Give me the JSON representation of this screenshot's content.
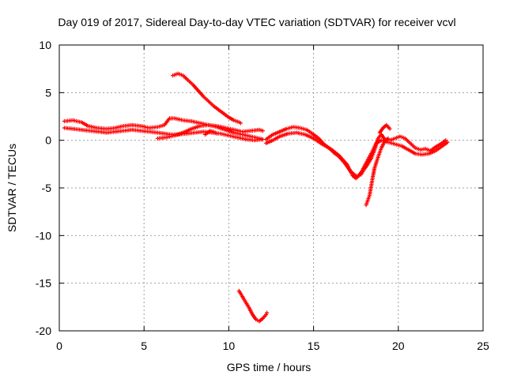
{
  "chart_data": {
    "type": "scatter",
    "title": "Day 019 of 2017, Sidereal Day-to-day VTEC variation (SDTVAR) for receiver vcvl",
    "xlabel": "GPS time / hours",
    "ylabel": "SDTVAR / TECUs",
    "xlim": [
      0,
      25
    ],
    "ylim": [
      -20,
      10
    ],
    "xticks": [
      0,
      5,
      10,
      15,
      20,
      25
    ],
    "yticks": [
      -20,
      -15,
      -10,
      -5,
      0,
      5,
      10
    ],
    "grid": true,
    "marker": "+",
    "series_color": "#ff0000",
    "segments": [
      {
        "name": "early-upper",
        "points": [
          [
            0.3,
            2.0
          ],
          [
            0.8,
            2.1
          ],
          [
            1.3,
            1.9
          ],
          [
            1.7,
            1.5
          ],
          [
            2.2,
            1.3
          ],
          [
            2.8,
            1.2
          ],
          [
            3.3,
            1.3
          ],
          [
            3.8,
            1.5
          ],
          [
            4.3,
            1.6
          ],
          [
            4.8,
            1.5
          ],
          [
            5.3,
            1.3
          ],
          [
            5.8,
            1.4
          ],
          [
            6.2,
            1.6
          ],
          [
            6.5,
            2.3
          ],
          [
            6.8,
            2.3
          ],
          [
            7.3,
            2.1
          ],
          [
            7.8,
            2.0
          ],
          [
            8.3,
            1.8
          ],
          [
            8.8,
            1.6
          ],
          [
            9.3,
            1.5
          ],
          [
            9.8,
            1.3
          ],
          [
            10.3,
            1.1
          ],
          [
            10.8,
            0.9
          ],
          [
            11.3,
            1.0
          ],
          [
            11.8,
            1.1
          ],
          [
            12.0,
            1.0
          ]
        ]
      },
      {
        "name": "early-lower",
        "points": [
          [
            0.3,
            1.3
          ],
          [
            0.8,
            1.2
          ],
          [
            1.3,
            1.1
          ],
          [
            1.8,
            1.0
          ],
          [
            2.3,
            0.9
          ],
          [
            2.8,
            0.8
          ],
          [
            3.3,
            0.9
          ],
          [
            3.8,
            1.0
          ],
          [
            4.3,
            1.1
          ],
          [
            4.8,
            1.0
          ],
          [
            5.3,
            0.9
          ],
          [
            5.8,
            0.8
          ],
          [
            6.2,
            0.7
          ],
          [
            6.6,
            0.6
          ],
          [
            7.0,
            0.6
          ],
          [
            7.5,
            0.7
          ],
          [
            8.0,
            0.8
          ],
          [
            8.5,
            0.9
          ],
          [
            9.0,
            0.8
          ],
          [
            9.5,
            0.7
          ],
          [
            10.0,
            0.5
          ],
          [
            10.5,
            0.3
          ],
          [
            11.0,
            0.1
          ],
          [
            11.5,
            0.0
          ],
          [
            12.0,
            0.1
          ]
        ]
      },
      {
        "name": "mid-lower",
        "points": [
          [
            5.8,
            0.2
          ],
          [
            6.3,
            0.3
          ],
          [
            6.8,
            0.5
          ],
          [
            7.3,
            0.8
          ],
          [
            7.8,
            1.2
          ],
          [
            8.3,
            1.5
          ],
          [
            8.8,
            1.6
          ],
          [
            9.3,
            1.4
          ],
          [
            9.8,
            1.1
          ],
          [
            10.3,
            0.8
          ],
          [
            10.8,
            0.6
          ],
          [
            11.3,
            0.4
          ],
          [
            11.8,
            0.2
          ],
          [
            12.0,
            0.1
          ]
        ]
      },
      {
        "name": "mid-bump",
        "points": [
          [
            8.6,
            0.6
          ],
          [
            8.9,
            1.0
          ],
          [
            9.1,
            0.9
          ],
          [
            9.3,
            0.7
          ]
        ]
      },
      {
        "name": "descending-arc",
        "points": [
          [
            6.7,
            6.8
          ],
          [
            7.0,
            7.0
          ],
          [
            7.3,
            6.8
          ],
          [
            7.6,
            6.3
          ],
          [
            7.9,
            5.8
          ],
          [
            8.2,
            5.2
          ],
          [
            8.5,
            4.6
          ],
          [
            8.8,
            4.1
          ],
          [
            9.1,
            3.6
          ],
          [
            9.4,
            3.2
          ],
          [
            9.7,
            2.8
          ],
          [
            10.0,
            2.4
          ],
          [
            10.3,
            2.1
          ],
          [
            10.6,
            1.9
          ],
          [
            10.7,
            1.8
          ]
        ]
      },
      {
        "name": "outlier-dip",
        "points": [
          [
            10.6,
            -15.8
          ],
          [
            10.8,
            -16.4
          ],
          [
            11.0,
            -17.0
          ],
          [
            11.2,
            -17.6
          ],
          [
            11.4,
            -18.3
          ],
          [
            11.6,
            -18.8
          ],
          [
            11.8,
            -19.0
          ],
          [
            12.0,
            -18.7
          ],
          [
            12.2,
            -18.3
          ],
          [
            12.25,
            -18.1
          ]
        ]
      },
      {
        "name": "afternoon-main",
        "points": [
          [
            12.2,
            0.1
          ],
          [
            12.6,
            0.6
          ],
          [
            13.0,
            0.9
          ],
          [
            13.4,
            1.2
          ],
          [
            13.8,
            1.4
          ],
          [
            14.2,
            1.3
          ],
          [
            14.6,
            1.1
          ],
          [
            15.0,
            0.6
          ],
          [
            15.3,
            0.2
          ],
          [
            15.6,
            -0.4
          ],
          [
            15.9,
            -0.8
          ],
          [
            16.2,
            -1.3
          ],
          [
            16.5,
            -1.7
          ],
          [
            16.8,
            -2.3
          ],
          [
            17.0,
            -2.8
          ],
          [
            17.2,
            -3.3
          ],
          [
            17.4,
            -3.6
          ],
          [
            17.6,
            -3.8
          ],
          [
            17.8,
            -3.6
          ],
          [
            18.0,
            -3.0
          ],
          [
            18.2,
            -2.5
          ],
          [
            18.4,
            -1.9
          ],
          [
            18.6,
            -1.0
          ],
          [
            18.8,
            0.2
          ],
          [
            19.0,
            0.6
          ],
          [
            19.2,
            0.1
          ],
          [
            19.5,
            0.0
          ],
          [
            19.8,
            0.2
          ],
          [
            20.1,
            0.4
          ],
          [
            20.4,
            0.2
          ],
          [
            20.7,
            -0.3
          ],
          [
            21.0,
            -0.8
          ],
          [
            21.3,
            -1.0
          ],
          [
            21.6,
            -0.9
          ],
          [
            21.9,
            -1.1
          ],
          [
            22.2,
            -0.7
          ],
          [
            22.5,
            -0.4
          ],
          [
            22.8,
            0.0
          ]
        ]
      },
      {
        "name": "afternoon-lower",
        "points": [
          [
            12.2,
            -0.3
          ],
          [
            12.6,
            0.0
          ],
          [
            13.0,
            0.4
          ],
          [
            13.5,
            0.7
          ],
          [
            14.0,
            0.8
          ],
          [
            14.5,
            0.6
          ],
          [
            15.0,
            0.2
          ],
          [
            15.5,
            -0.4
          ],
          [
            16.0,
            -0.9
          ],
          [
            16.5,
            -1.6
          ],
          [
            17.0,
            -2.6
          ],
          [
            17.3,
            -3.7
          ],
          [
            17.5,
            -4.0
          ],
          [
            17.8,
            -3.4
          ],
          [
            18.1,
            -2.4
          ],
          [
            18.4,
            -1.4
          ],
          [
            18.7,
            -0.3
          ],
          [
            19.0,
            0.0
          ],
          [
            19.4,
            -0.2
          ],
          [
            19.8,
            -0.4
          ],
          [
            20.2,
            -0.6
          ],
          [
            20.6,
            -1.0
          ],
          [
            21.0,
            -1.4
          ],
          [
            21.4,
            -1.5
          ],
          [
            21.8,
            -1.4
          ],
          [
            22.2,
            -1.1
          ],
          [
            22.6,
            -0.6
          ],
          [
            22.9,
            -0.2
          ]
        ]
      },
      {
        "name": "hook-rise",
        "points": [
          [
            18.1,
            -6.8
          ],
          [
            18.3,
            -5.8
          ],
          [
            18.4,
            -4.8
          ],
          [
            18.5,
            -3.8
          ],
          [
            18.6,
            -2.9
          ],
          [
            18.8,
            -1.8
          ],
          [
            19.0,
            -0.8
          ],
          [
            19.2,
            -0.1
          ],
          [
            19.4,
            0.2
          ]
        ]
      },
      {
        "name": "upward-spike",
        "points": [
          [
            18.9,
            0.8
          ],
          [
            19.1,
            1.3
          ],
          [
            19.3,
            1.6
          ],
          [
            19.5,
            1.2
          ]
        ]
      }
    ]
  }
}
